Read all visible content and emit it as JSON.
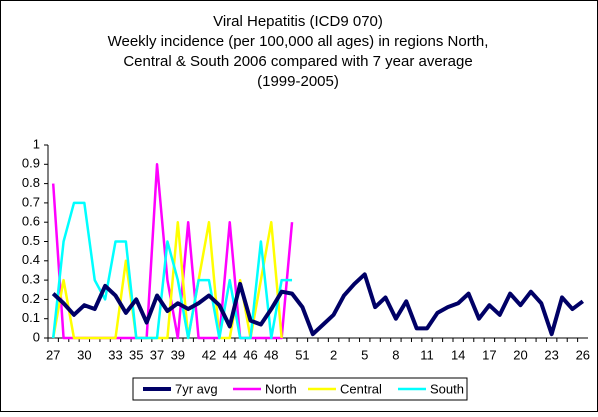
{
  "chart_data": {
    "type": "line",
    "title": "Viral Hepatitis (ICD9 070)",
    "subtitle": [
      "Weekly incidence (per 100,000 all ages) in regions North,",
      "Central & South 2006 compared with 7 year average",
      "(1999-2005)"
    ],
    "categories": [
      "27",
      null,
      null,
      "30",
      null,
      null,
      "33",
      null,
      "35",
      null,
      "37",
      null,
      "39",
      null,
      null,
      "42",
      null,
      "44",
      null,
      "46",
      null,
      "48",
      null,
      null,
      "51",
      null,
      null,
      "2",
      null,
      null,
      "5",
      null,
      null,
      "8",
      null,
      null,
      "11",
      null,
      null,
      "14",
      null,
      null,
      "17",
      null,
      null,
      "20",
      null,
      null,
      "23",
      null,
      null,
      "26"
    ],
    "series": [
      {
        "name": "7yr avg",
        "color": "#000066",
        "width": 4,
        "values": [
          0.23,
          0.18,
          0.12,
          0.17,
          0.15,
          0.27,
          0.22,
          0.13,
          0.2,
          0.08,
          0.22,
          0.14,
          0.18,
          0.15,
          0.18,
          0.22,
          0.17,
          0.06,
          0.28,
          0.09,
          0.07,
          0.15,
          0.24,
          0.23,
          0.16,
          0.02,
          0.07,
          0.12,
          0.22,
          0.28,
          0.33,
          0.16,
          0.21,
          0.1,
          0.19,
          0.05,
          0.05,
          0.13,
          0.16,
          0.18,
          0.23,
          0.1,
          0.17,
          0.12,
          0.23,
          0.17,
          0.24,
          0.18,
          0.02,
          0.21,
          0.15,
          0.19
        ]
      },
      {
        "name": "North",
        "color": "#ff00ff",
        "width": 2.5,
        "values": [
          0.8,
          0,
          0,
          0,
          0,
          0,
          0,
          0,
          0,
          0,
          0.9,
          0.3,
          0,
          0.6,
          0,
          0,
          0,
          0.6,
          0,
          0,
          0,
          0,
          0,
          0.6,
          null,
          null,
          null,
          null,
          null,
          null,
          null,
          null,
          null,
          null,
          null,
          null,
          null,
          null,
          null,
          null,
          null,
          null,
          null,
          null,
          null,
          null,
          null,
          null,
          null,
          null,
          null,
          null
        ]
      },
      {
        "name": "Central",
        "color": "#ffff00",
        "width": 2.5,
        "values": [
          0,
          0.3,
          0,
          0,
          0,
          0,
          0,
          0.4,
          0,
          0,
          0,
          0,
          0.6,
          0,
          0.3,
          0.6,
          0,
          0,
          0.3,
          0,
          0.3,
          0.6,
          0,
          null,
          null,
          null,
          null,
          null,
          null,
          null,
          null,
          null,
          null,
          null,
          null,
          null,
          null,
          null,
          null,
          null,
          null,
          null,
          null,
          null,
          null,
          null,
          null,
          null,
          null,
          null,
          null,
          null
        ]
      },
      {
        "name": "South",
        "color": "#00ffff",
        "width": 2.5,
        "values": [
          0,
          0.5,
          0.7,
          0.7,
          0.3,
          0.2,
          0.5,
          0.5,
          0,
          0,
          0,
          0.5,
          0.3,
          0,
          0.3,
          0.3,
          0,
          0.3,
          0,
          0,
          0.5,
          0,
          0.3,
          0.3,
          null,
          null,
          null,
          null,
          null,
          null,
          null,
          null,
          null,
          null,
          null,
          null,
          null,
          null,
          null,
          null,
          null,
          null,
          null,
          null,
          null,
          null,
          null,
          null,
          null,
          null,
          null,
          null
        ]
      }
    ],
    "ylim": [
      0,
      1
    ],
    "yticks": [
      0,
      0.1,
      0.2,
      0.3,
      0.4,
      0.5,
      0.6,
      0.7,
      0.8,
      0.9,
      1
    ],
    "grid": false,
    "legend": "bottom"
  }
}
